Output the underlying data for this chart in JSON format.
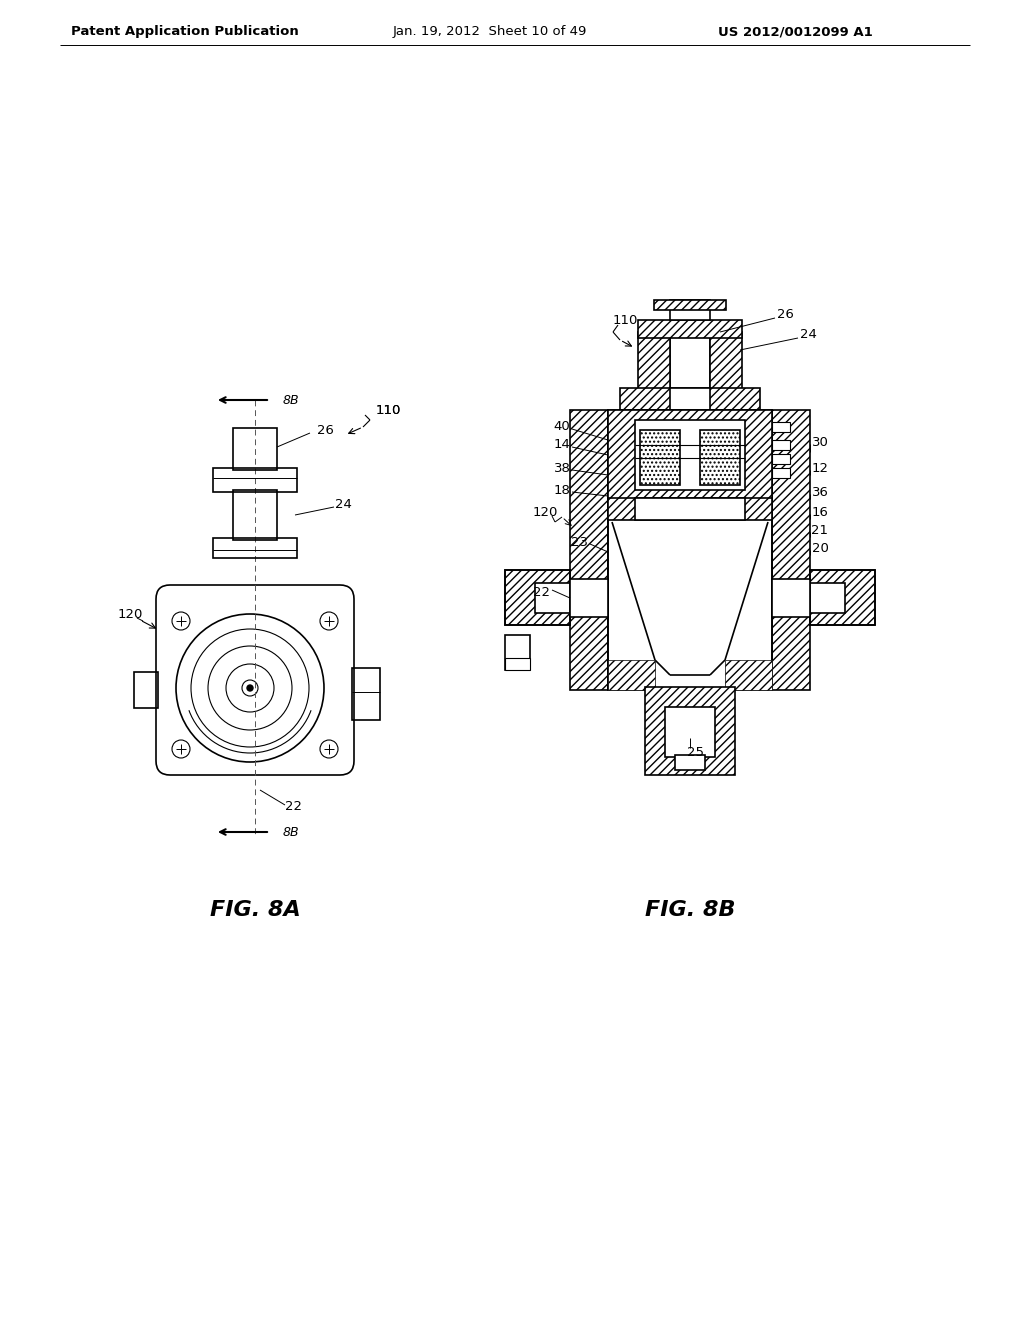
{
  "background_color": "#ffffff",
  "header_left": "Patent Application Publication",
  "header_center": "Jan. 19, 2012  Sheet 10 of 49",
  "header_right": "US 2012/0012099 A1",
  "fig_label_a": "FIG. 8A",
  "fig_label_b": "FIG. 8B",
  "line_color": "#000000",
  "font_size_header": 10,
  "font_size_label": 16,
  "font_size_ref": 9.5
}
